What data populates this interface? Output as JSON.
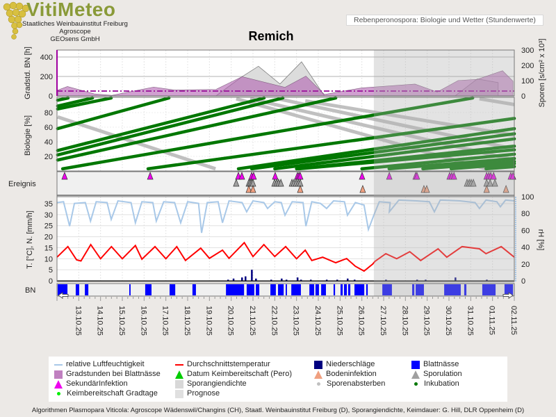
{
  "header": {
    "logo_text": "VitiMeteo",
    "orgs": [
      "Staatliches Weinbauinstitut Freiburg",
      "Agroscope",
      "GEOsens GmbH"
    ],
    "subtitle": "Rebenperonospora: Biologie und Wetter (Stundenwerte)",
    "title": "Remich"
  },
  "axes": {
    "gradstd_label": "Gradstd. BN [h]",
    "sporen_label": "Sporen [s/cm² x 10³]",
    "biologie_label": "Biologie [%]",
    "ereignis_label": "Ereignis",
    "temp_label": "T. [°C], N. [mm/h]",
    "rh_label": "rH [%]",
    "bn_label": "BN"
  },
  "footer": "Algorithmen Plasmopara Viticola: Agroscope Wädenswil/Changins (CH), Staatl. Weinbauinstitut Freiburg (D), Sporangiendichte, Keimdauer: G. Hill, DLR Oppenheim (D)",
  "legend": [
    {
      "label": "relative Luftfeuchtigkeit",
      "symbol": "line",
      "color": "#a8c8e8"
    },
    {
      "label": "Durchschnittstemperatur",
      "symbol": "line",
      "color": "#ff0000"
    },
    {
      "label": "Niederschläge",
      "symbol": "square",
      "color": "#000080"
    },
    {
      "label": "Blattnässe",
      "symbol": "square",
      "color": "#0000ff"
    },
    {
      "label": "Gradstunden bei Blattnässe",
      "symbol": "square",
      "color": "#c080c0"
    },
    {
      "label": "Datum Keimbereitschaft (Pero)",
      "symbol": "triangle",
      "color": "#00cc00"
    },
    {
      "label": "Bodeninfektion",
      "symbol": "triangle",
      "color": "#f0a080"
    },
    {
      "label": "Sporulation",
      "symbol": "triangle",
      "color": "#a0a0a0"
    },
    {
      "label": "SekundärInfektion",
      "symbol": "triangle",
      "color": "#ee00ee"
    },
    {
      "label": "Sporangiendichte",
      "symbol": "square",
      "color": "#d8d8d8"
    },
    {
      "label": "Sporenabsterben",
      "symbol": "dot",
      "color": "#c0c0c0"
    },
    {
      "label": "Inkubation",
      "symbol": "dot",
      "color": "#007700"
    },
    {
      "label": "Keimbereitschaft Gradtage",
      "symbol": "dot",
      "color": "#00ee00"
    },
    {
      "label": "Prognose",
      "symbol": "square",
      "color": "#e0e0e0"
    }
  ],
  "chart_data": {
    "type": "line",
    "x_unit": "days since 12.10.25 00:00",
    "x_range": [
      0,
      21
    ],
    "date_ticks": [
      "13.10.25",
      "14.10.25",
      "15.10.25",
      "16.10.25",
      "17.10.25",
      "18.10.25",
      "19.10.25",
      "20.10.25",
      "21.10.25",
      "22.10.25",
      "23.10.25",
      "24.10.25",
      "25.10.25",
      "26.10.25",
      "27.10.25",
      "28.10.25",
      "29.10.25",
      "30.10.25",
      "31.10.25",
      "01.11.25",
      "02.11.25"
    ],
    "forecast_start_day": 14.55,
    "gradstunden": {
      "ylim": [
        0,
        480
      ],
      "ticks": [
        0,
        200,
        400
      ],
      "threshold": 50,
      "points": [
        [
          0.04,
          60
        ],
        [
          0.48,
          97
        ],
        [
          1.71,
          21
        ],
        [
          2.52,
          6
        ],
        [
          4.44,
          91
        ],
        [
          5.39,
          61
        ],
        [
          7.3,
          67
        ],
        [
          8.5,
          198
        ],
        [
          10.47,
          88
        ],
        [
          11.43,
          204
        ],
        [
          12.28,
          15
        ],
        [
          13.98,
          82
        ],
        [
          16.44,
          122
        ],
        [
          17.46,
          40
        ],
        [
          18.42,
          158
        ],
        [
          19.3,
          170
        ],
        [
          20.46,
          259
        ],
        [
          20.94,
          152
        ]
      ]
    },
    "sporangiendichte": {
      "ylim": [
        0,
        330
      ],
      "ticks": [
        0,
        100,
        200,
        300
      ],
      "points": [
        [
          7.3,
          0
        ],
        [
          8.5,
          126
        ],
        [
          9.25,
          194
        ],
        [
          10.24,
          78
        ],
        [
          11.23,
          223
        ],
        [
          11.87,
          87
        ],
        [
          12.28,
          0
        ],
        [
          18.28,
          0
        ],
        [
          19.3,
          111
        ],
        [
          20.26,
          87
        ],
        [
          20.26,
          0
        ]
      ]
    },
    "biologie": {
      "ylim": [
        0,
        100
      ],
      "ticks": [
        20,
        40,
        60,
        80
      ],
      "inkubation": [
        [
          0.03,
          97,
          0.51,
          100
        ],
        [
          0.03,
          89,
          1.63,
          100
        ],
        [
          0.03,
          85,
          2.49,
          100
        ],
        [
          0.03,
          58,
          5.14,
          100
        ],
        [
          0.03,
          28,
          9.51,
          100
        ],
        [
          0.03,
          22,
          10.37,
          100
        ],
        [
          0.03,
          15,
          12.8,
          100
        ],
        [
          0.26,
          3,
          19.09,
          100
        ],
        [
          4.18,
          3,
          21,
          72
        ],
        [
          8.33,
          3,
          21,
          58
        ],
        [
          8.94,
          3,
          21,
          51
        ],
        [
          10,
          3,
          21,
          44
        ],
        [
          11,
          3,
          21,
          34
        ],
        [
          11.1,
          3,
          21,
          29
        ],
        [
          14,
          3,
          21,
          23
        ],
        [
          15.25,
          3,
          21,
          17
        ],
        [
          16.8,
          3,
          21,
          13
        ],
        [
          18.1,
          3,
          21,
          10
        ],
        [
          19.7,
          3,
          21,
          6
        ]
      ],
      "sporenabsterben": [
        [
          0.03,
          74,
          7.28,
          3
        ],
        [
          8.23,
          99,
          19.7,
          3
        ],
        [
          8.87,
          99,
          21,
          15
        ],
        [
          10.15,
          99,
          21,
          30
        ],
        [
          11.4,
          96,
          21,
          49
        ],
        [
          19.4,
          99,
          21,
          91
        ]
      ]
    },
    "ereignis": {
      "sekundaerinfektion": [
        0.35,
        4.28,
        8.33,
        8.49,
        8.94,
        9.03,
        10.02,
        11.04,
        11.11,
        11.17,
        14.01,
        15.26,
        16.47,
        16.53,
        18.03,
        18.13,
        18.23,
        19.73,
        19.83,
        19.92,
        20.05,
        20.84,
        20.94
      ],
      "sporulation": [
        8.23,
        8.81,
        8.87,
        8.94,
        9.0,
        9.99,
        10.09,
        10.18,
        10.28,
        10.79,
        10.88,
        10.98,
        11.08,
        11.17,
        18.83,
        18.93,
        19.02,
        19.12,
        19.73,
        19.89,
        20.11
      ],
      "bodeninfektion": [
        8.81,
        9.0,
        11.17,
        14.04,
        16.85,
        16.98,
        19.73,
        20.62
      ],
      "keimbereitschaft": []
    },
    "temperatur": {
      "ylim": [
        0,
        35
      ],
      "ticks": [
        0,
        5,
        10,
        15,
        20,
        25,
        30,
        35
      ],
      "points": [
        [
          0,
          10.7
        ],
        [
          0.5,
          15.5
        ],
        [
          0.9,
          9.5
        ],
        [
          1.1,
          9.0
        ],
        [
          1.55,
          16.4
        ],
        [
          2.0,
          10
        ],
        [
          2.5,
          15.5
        ],
        [
          3.0,
          10
        ],
        [
          3.6,
          16
        ],
        [
          3.9,
          9.8
        ],
        [
          4.5,
          15.5
        ],
        [
          5.0,
          10
        ],
        [
          5.5,
          15.5
        ],
        [
          5.9,
          9.2
        ],
        [
          6.6,
          14.8
        ],
        [
          7.0,
          10.2
        ],
        [
          7.6,
          13.9
        ],
        [
          7.9,
          10.2
        ],
        [
          8.6,
          17.3
        ],
        [
          9.0,
          11
        ],
        [
          9.5,
          16.4
        ],
        [
          10.0,
          11
        ],
        [
          10.5,
          15.5
        ],
        [
          11.0,
          10
        ],
        [
          11.4,
          13.9
        ],
        [
          11.7,
          9.2
        ],
        [
          12.2,
          10.7
        ],
        [
          12.8,
          8.2
        ],
        [
          13.3,
          10.1
        ],
        [
          13.7,
          6.6
        ],
        [
          14.1,
          4.4
        ],
        [
          14.5,
          7.6
        ],
        [
          14.6,
          8.8
        ],
        [
          15.1,
          12.3
        ],
        [
          15.6,
          10
        ],
        [
          16.2,
          13.2
        ],
        [
          16.7,
          9.2
        ],
        [
          17.5,
          14.5
        ],
        [
          17.9,
          10.7
        ],
        [
          18.6,
          15.5
        ],
        [
          19.4,
          14.5
        ],
        [
          19.7,
          12.3
        ],
        [
          20.4,
          15.5
        ],
        [
          21,
          10.7
        ]
      ]
    },
    "luftfeuchtigkeit": {
      "ylim": [
        0,
        100
      ],
      "ticks": [
        0,
        20,
        40,
        60,
        80,
        100
      ],
      "points": [
        [
          0,
          93
        ],
        [
          0.3,
          94
        ],
        [
          0.58,
          65
        ],
        [
          0.8,
          92
        ],
        [
          1.3,
          93
        ],
        [
          1.54,
          71
        ],
        [
          1.8,
          94
        ],
        [
          2.3,
          93
        ],
        [
          2.49,
          73
        ],
        [
          2.8,
          95
        ],
        [
          3.4,
          93
        ],
        [
          3.6,
          69
        ],
        [
          3.9,
          94
        ],
        [
          4.4,
          93
        ],
        [
          4.56,
          71
        ],
        [
          4.9,
          94
        ],
        [
          5.4,
          93
        ],
        [
          5.68,
          69
        ],
        [
          6.0,
          94
        ],
        [
          6.5,
          92
        ],
        [
          6.64,
          57
        ],
        [
          6.9,
          93
        ],
        [
          7.4,
          94
        ],
        [
          7.6,
          69
        ],
        [
          7.9,
          95
        ],
        [
          8.5,
          93
        ],
        [
          8.71,
          82
        ],
        [
          9.0,
          95
        ],
        [
          9.5,
          93
        ],
        [
          9.67,
          86
        ],
        [
          10.0,
          94
        ],
        [
          10.3,
          93
        ],
        [
          10.47,
          78
        ],
        [
          10.8,
          94
        ],
        [
          11.3,
          93
        ],
        [
          11.43,
          65
        ],
        [
          11.7,
          94
        ],
        [
          12.1,
          92
        ],
        [
          12.38,
          86
        ],
        [
          12.7,
          95
        ],
        [
          13.2,
          94
        ],
        [
          13.34,
          78
        ],
        [
          13.7,
          93
        ],
        [
          14.1,
          90
        ],
        [
          14.3,
          61
        ],
        [
          14.55,
          78
        ],
        [
          14.8,
          94
        ],
        [
          15.3,
          93
        ],
        [
          15.26,
          82
        ],
        [
          15.7,
          96
        ],
        [
          16.5,
          95
        ],
        [
          17.1,
          94
        ],
        [
          17.33,
          82
        ],
        [
          17.6,
          96
        ],
        [
          18.5,
          95
        ],
        [
          19.2,
          93
        ],
        [
          19.4,
          86
        ],
        [
          19.7,
          96
        ],
        [
          20.2,
          94
        ],
        [
          20.36,
          88
        ],
        [
          20.6,
          96
        ],
        [
          21,
          95
        ]
      ]
    },
    "niederschlag": [
      [
        7.85,
        0.5
      ],
      [
        8.1,
        1
      ],
      [
        8.49,
        1.5
      ],
      [
        8.65,
        2
      ],
      [
        8.94,
        5
      ],
      [
        9.13,
        1
      ],
      [
        9.83,
        0.5
      ],
      [
        10.31,
        1
      ],
      [
        10.53,
        0.5
      ],
      [
        11.04,
        1.5
      ],
      [
        11.2,
        0.5
      ],
      [
        11.65,
        0.5
      ],
      [
        12.38,
        0.5
      ],
      [
        12.86,
        0.5
      ],
      [
        13.34,
        1
      ],
      [
        13.66,
        0.5
      ],
      [
        15.1,
        0.5
      ],
      [
        16.53,
        0.5
      ],
      [
        16.92,
        0.5
      ],
      [
        18.29,
        1.5
      ],
      [
        19.73,
        0.5
      ]
    ],
    "blattnaesse_intervals": [
      [
        0.03,
        0.48
      ],
      [
        0.86,
        1.02
      ],
      [
        1.28,
        1.44
      ],
      [
        3.32,
        3.38
      ],
      [
        4.05,
        4.34
      ],
      [
        5.17,
        5.43
      ],
      [
        6.22,
        6.38
      ],
      [
        7.76,
        8.59
      ],
      [
        8.71,
        9.06
      ],
      [
        9.13,
        9.29
      ],
      [
        9.8,
        10.05
      ],
      [
        10.15,
        10.41
      ],
      [
        10.5,
        10.56
      ],
      [
        10.76,
        11.2
      ],
      [
        11.59,
        11.81
      ],
      [
        11.87,
        12.03
      ],
      [
        12.13,
        12.35
      ],
      [
        12.7,
        12.77
      ],
      [
        13.02,
        13.12
      ],
      [
        13.18,
        13.31
      ],
      [
        13.37,
        13.47
      ],
      [
        13.66,
        14.11
      ],
      [
        14.2,
        14.27
      ],
      [
        14.94,
        15.38
      ],
      [
        16.31,
        16.41
      ],
      [
        16.47,
        16.85
      ],
      [
        17.78,
        18.54
      ],
      [
        18.7,
        18.8
      ],
      [
        19.53,
        20.14
      ],
      [
        20.55,
        20.94
      ]
    ]
  }
}
